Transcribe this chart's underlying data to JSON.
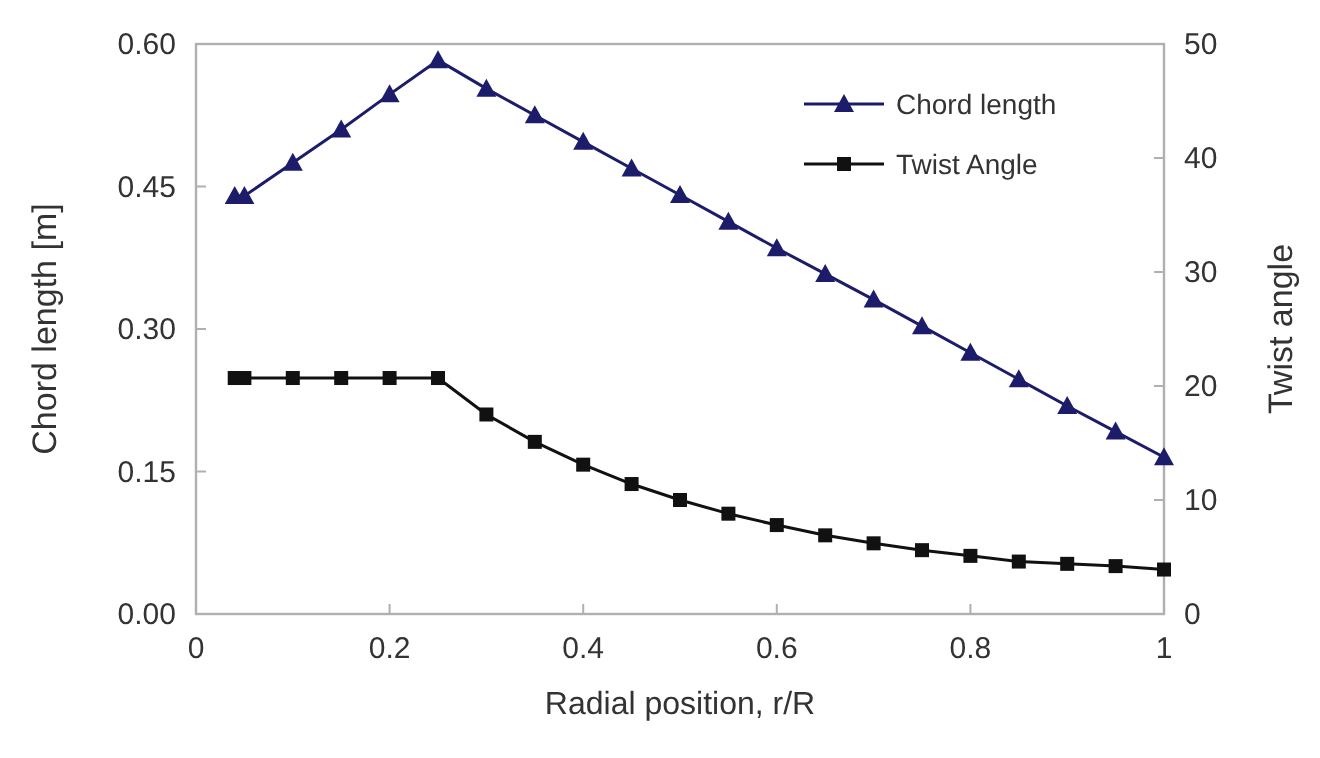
{
  "chart_data": {
    "type": "line",
    "xlabel": "Radial position, r/R",
    "ylabel": "Chord length [m]",
    "y2label": "Twist angle",
    "xlim": [
      0,
      1
    ],
    "xticks": [
      0,
      0.2,
      0.4,
      0.6,
      0.8,
      1
    ],
    "ylim": [
      0,
      0.6
    ],
    "yticks": [
      {
        "value": 0,
        "label": "0.00"
      },
      {
        "value": 0.15,
        "label": "0.15"
      },
      {
        "value": 0.3,
        "label": "0.30"
      },
      {
        "value": 0.45,
        "label": "0.45"
      },
      {
        "value": 0.6,
        "label": "0.60"
      }
    ],
    "y2lim": [
      0,
      50
    ],
    "y2ticks": [
      0,
      10,
      20,
      30,
      40,
      50
    ],
    "x": [
      0.04,
      0.05,
      0.1,
      0.15,
      0.2,
      0.25,
      0.3,
      0.35,
      0.4,
      0.45,
      0.5,
      0.55,
      0.6,
      0.65,
      0.7,
      0.75,
      0.8,
      0.85,
      0.9,
      0.95,
      1.0
    ],
    "legend": "top right",
    "grid": false,
    "series": [
      {
        "name": "Chord length",
        "color": "#1c1c6b",
        "marker": "triangle",
        "values": [
          0.44,
          0.44,
          0.475,
          0.51,
          0.547,
          0.583,
          0.553,
          0.525,
          0.497,
          0.469,
          0.441,
          0.413,
          0.385,
          0.358,
          0.331,
          0.303,
          0.275,
          0.247,
          0.219,
          0.192,
          0.165
        ]
      },
      {
        "name": "Twist Angle",
        "color": "#111111",
        "marker": "square",
        "axis": "y2",
        "values": [
          20.7,
          20.7,
          20.7,
          20.7,
          20.7,
          20.7,
          17.5,
          15.1,
          13.1,
          11.4,
          10,
          8.8,
          7.8,
          6.9,
          6.2,
          5.6,
          5.1,
          4.6,
          4.4,
          4.2,
          3.9
        ]
      }
    ]
  }
}
